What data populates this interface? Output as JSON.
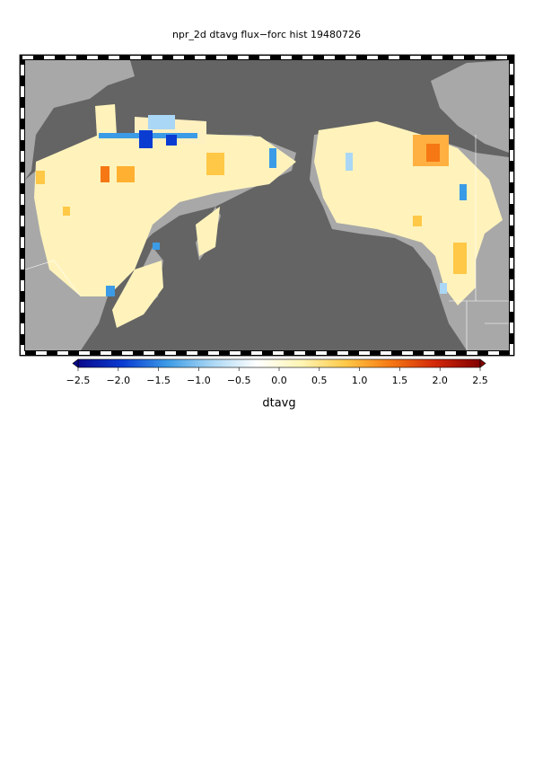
{
  "map": {
    "title": "npr_2d dtavg flux−forc hist 19480726",
    "colorbar": {
      "label": "dtavg",
      "range": [
        -2.5,
        2.5
      ],
      "colors": [
        "#0a0a8c",
        "#0a3cd2",
        "#3c9be6",
        "#aad7f5",
        "#ffffff",
        "#fff5b4",
        "#ffc846",
        "#f57814",
        "#d2280a",
        "#820000"
      ],
      "ticks": [
        {
          "value": -2.5,
          "label": "−2.5"
        },
        {
          "value": -2,
          "label": "−2.0"
        },
        {
          "value": -1.5,
          "label": "−1.5"
        },
        {
          "value": -1,
          "label": "−1.0"
        },
        {
          "value": -0.5,
          "label": "−0.5"
        },
        {
          "value": 0,
          "label": "0.0"
        },
        0.5,
        {
          "value": 1,
          "label": "1.0"
        },
        1.5,
        {
          "value": 2,
          "label": "2.0"
        },
        2.5
      ]
    }
  }
}
